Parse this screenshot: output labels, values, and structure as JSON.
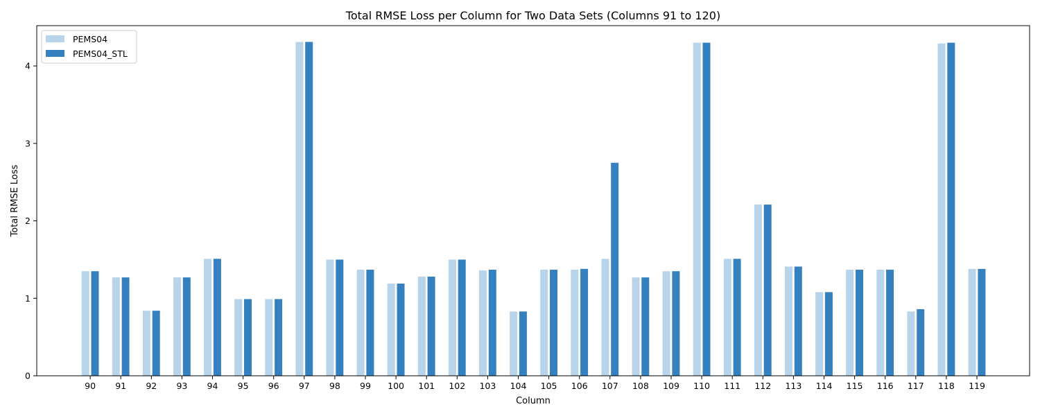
{
  "colors": {
    "series_0": "#b7d4ea",
    "series_1": "#3580bf",
    "axis": "#000000",
    "legend_border": "#cccccc"
  },
  "chart_data": {
    "type": "bar",
    "title": "Total RMSE Loss per Column for Two Data Sets (Columns 91 to 120)",
    "xlabel": "Column",
    "ylabel": "Total RMSE Loss",
    "ylim": [
      0,
      4.52
    ],
    "yticks": [
      "0",
      "1",
      "2",
      "3",
      "4"
    ],
    "grid": false,
    "legend_position": "top-left",
    "categories": [
      "90",
      "91",
      "92",
      "93",
      "94",
      "95",
      "96",
      "97",
      "98",
      "99",
      "100",
      "101",
      "102",
      "103",
      "104",
      "105",
      "106",
      "107",
      "108",
      "109",
      "110",
      "111",
      "112",
      "113",
      "114",
      "115",
      "116",
      "117",
      "118",
      "119"
    ],
    "series": [
      {
        "name": "PEMS04",
        "values": [
          1.35,
          1.27,
          0.84,
          1.27,
          1.51,
          0.99,
          0.99,
          4.31,
          1.5,
          1.37,
          1.19,
          1.28,
          1.5,
          1.36,
          0.83,
          1.37,
          1.37,
          1.51,
          1.27,
          1.35,
          4.3,
          1.51,
          2.21,
          1.41,
          1.08,
          1.37,
          1.37,
          0.83,
          4.29,
          1.38
        ]
      },
      {
        "name": "PEMS04_STL",
        "values": [
          1.35,
          1.27,
          0.84,
          1.27,
          1.51,
          0.99,
          0.99,
          4.31,
          1.5,
          1.37,
          1.19,
          1.28,
          1.5,
          1.37,
          0.83,
          1.37,
          1.38,
          2.75,
          1.27,
          1.35,
          4.3,
          1.51,
          2.21,
          1.41,
          1.08,
          1.37,
          1.37,
          0.86,
          4.3,
          1.38
        ]
      }
    ]
  }
}
